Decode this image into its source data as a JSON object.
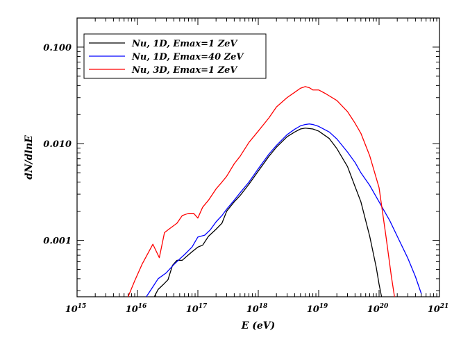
{
  "chart_data": {
    "type": "line",
    "xlabel": "E (eV)",
    "ylabel": "dN/dlnE",
    "x_scale": "log",
    "y_scale": "log",
    "xlim": [
      1000000000000000.0,
      1e+21
    ],
    "ylim": [
      0.00026,
      0.2
    ],
    "x_ticks": [
      {
        "base": "10",
        "exp": "15"
      },
      {
        "base": "10",
        "exp": "16"
      },
      {
        "base": "10",
        "exp": "17"
      },
      {
        "base": "10",
        "exp": "18"
      },
      {
        "base": "10",
        "exp": "19"
      },
      {
        "base": "10",
        "exp": "20"
      },
      {
        "base": "10",
        "exp": "21"
      }
    ],
    "y_ticks": [
      {
        "value": 0.001,
        "label": "0.001"
      },
      {
        "value": 0.01,
        "label": "0.010"
      },
      {
        "value": 0.1,
        "label": "0.100"
      }
    ],
    "grid": false,
    "legend_position": "top-left",
    "series": [
      {
        "name": "Nu, 1D, Emax=1 ZeV",
        "color": "#000000",
        "x": [
          1.9e+16,
          2.2e+16,
          2.7e+16,
          3.2e+16,
          3.8e+16,
          4.5e+16,
          5.5e+16,
          6.5e+16,
          8e+16,
          1e+17,
          1.2e+17,
          1.5e+17,
          2e+17,
          2.5e+17,
          3e+17,
          4e+17,
          5e+17,
          7e+17,
          1e+18,
          1.5e+18,
          2e+18,
          3e+18,
          4e+18,
          5e+18,
          6e+18,
          8e+18,
          1e+19,
          1.5e+19,
          2e+19,
          3e+19,
          4e+19,
          5e+19,
          7e+19,
          9e+19,
          1e+20,
          1.1e+20
        ],
        "y": [
          0.00026,
          0.00031,
          0.00035,
          0.00039,
          0.00055,
          0.00062,
          0.00062,
          0.00068,
          0.00076,
          0.00085,
          0.00089,
          0.0011,
          0.0013,
          0.0015,
          0.002,
          0.0025,
          0.0029,
          0.0038,
          0.0052,
          0.0074,
          0.0092,
          0.0118,
          0.0132,
          0.0142,
          0.0145,
          0.0142,
          0.0135,
          0.0113,
          0.0089,
          0.0058,
          0.0036,
          0.0025,
          0.0011,
          0.00052,
          0.00035,
          0.00026
        ]
      },
      {
        "name": "Nu, 1D, Emax=40 ZeV",
        "color": "#0000ff",
        "x": [
          1.4e+16,
          1.8e+16,
          2.2e+16,
          3e+16,
          4e+16,
          5e+16,
          6e+16,
          8e+16,
          1e+17,
          1.3e+17,
          1.6e+17,
          2e+17,
          2.5e+17,
          3e+17,
          4e+17,
          5e+17,
          7e+17,
          1e+18,
          1.5e+18,
          2e+18,
          3e+18,
          4e+18,
          5e+18,
          6e+18,
          7e+18,
          8e+18,
          1e+19,
          1.5e+19,
          2e+19,
          3e+19,
          4e+19,
          5e+19,
          7e+19,
          1e+20,
          1.5e+20,
          2e+20,
          3e+20,
          4e+20,
          5e+20
        ],
        "y": [
          0.00026,
          0.00033,
          0.0004,
          0.00046,
          0.00056,
          0.00064,
          0.00071,
          0.00085,
          0.00108,
          0.00113,
          0.00128,
          0.00155,
          0.0018,
          0.0021,
          0.0026,
          0.0031,
          0.004,
          0.0055,
          0.0078,
          0.0096,
          0.0124,
          0.0141,
          0.0153,
          0.0158,
          0.016,
          0.0158,
          0.0151,
          0.0132,
          0.0112,
          0.0082,
          0.0064,
          0.005,
          0.0037,
          0.0025,
          0.0016,
          0.0011,
          0.00065,
          0.00042,
          0.00028
        ]
      },
      {
        "name": "Nu, 3D, Emax=1 ZeV",
        "color": "#ff0000",
        "x": [
          7000000000000000.0,
          9000000000000000.0,
          1.2e+16,
          1.8e+16,
          2.3e+16,
          2.8e+16,
          3.3e+16,
          4.5e+16,
          5.5e+16,
          7e+16,
          8.5e+16,
          1e+17,
          1.2e+17,
          1.5e+17,
          2e+17,
          2.5e+17,
          3e+17,
          4e+17,
          5e+17,
          7e+17,
          1e+18,
          1.5e+18,
          2e+18,
          3e+18,
          4e+18,
          5e+18,
          6e+18,
          7e+18,
          8e+18,
          1e+19,
          1.3e+19,
          2e+19,
          3e+19,
          4e+19,
          5e+19,
          7e+19,
          1e+20,
          1.3e+20,
          1.6e+20,
          1.8e+20
        ],
        "y": [
          0.00026,
          0.00038,
          0.00057,
          0.00091,
          0.00066,
          0.0012,
          0.0013,
          0.0015,
          0.0018,
          0.0019,
          0.0019,
          0.0017,
          0.0022,
          0.0026,
          0.0034,
          0.004,
          0.0046,
          0.0062,
          0.0074,
          0.0103,
          0.0135,
          0.0185,
          0.024,
          0.03,
          0.034,
          0.0375,
          0.039,
          0.038,
          0.036,
          0.036,
          0.033,
          0.028,
          0.0215,
          0.0163,
          0.0128,
          0.0075,
          0.0035,
          0.0011,
          0.00042,
          0.00026
        ]
      }
    ]
  }
}
